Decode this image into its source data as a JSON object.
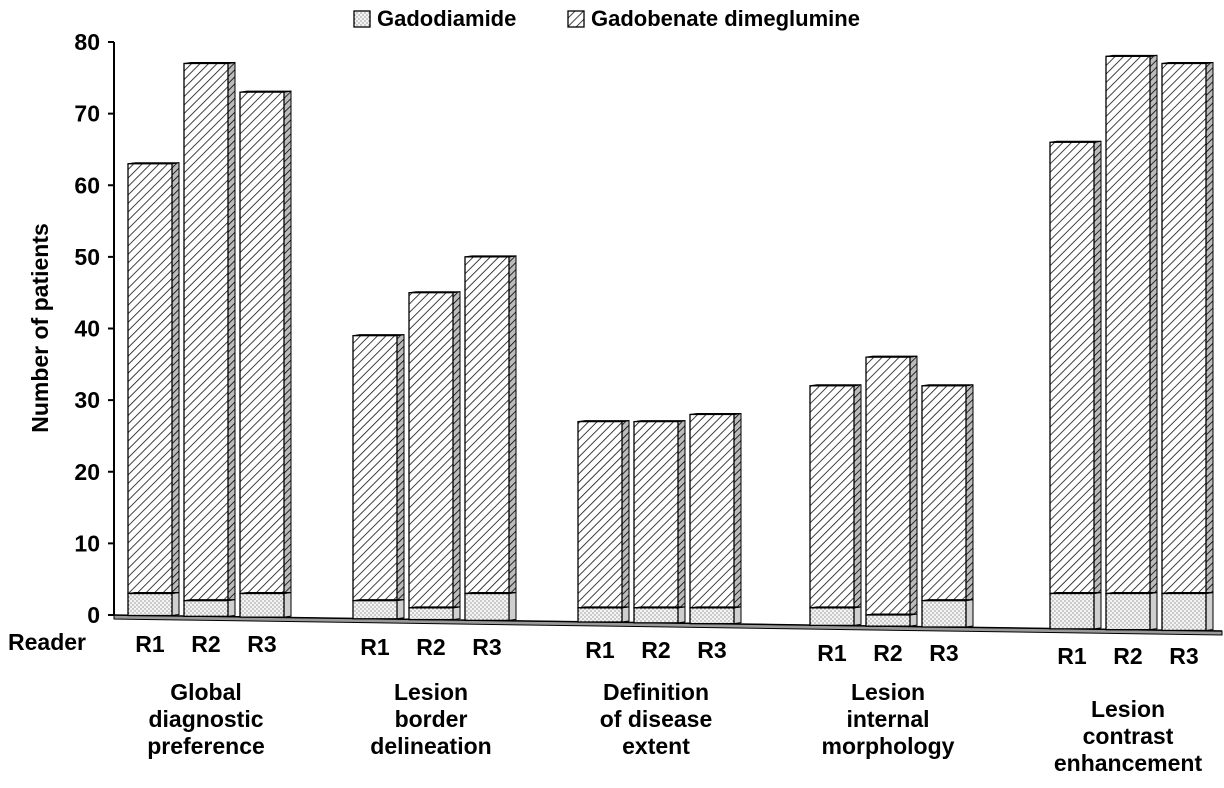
{
  "chart_data": {
    "type": "bar",
    "ylabel": "Number of patients",
    "ylim": [
      0,
      80
    ],
    "yticks": [
      "0",
      "10",
      "20",
      "30",
      "40",
      "50",
      "60",
      "70",
      "80"
    ],
    "reader_label": "Reader",
    "readers": [
      "R1",
      "R2",
      "R3"
    ],
    "groups": [
      {
        "label_lines": [
          "Global",
          "diagnostic",
          "preference"
        ]
      },
      {
        "label_lines": [
          "Lesion",
          "border",
          "delineation"
        ]
      },
      {
        "label_lines": [
          "Definition",
          "of disease",
          "extent"
        ]
      },
      {
        "label_lines": [
          "Lesion",
          "internal",
          "morphology"
        ]
      },
      {
        "label_lines": [
          "Lesion",
          "contrast",
          "enhancement"
        ]
      }
    ],
    "series": [
      {
        "name": "Gadodiamide",
        "pattern": "dotted",
        "values": [
          3,
          2,
          3,
          2,
          1,
          3,
          1,
          1,
          1,
          1,
          0,
          2,
          3,
          3,
          3
        ]
      },
      {
        "name": "Gadobenate dimeglumine",
        "pattern": "hatched",
        "values": [
          63,
          77,
          73,
          39,
          45,
          50,
          27,
          27,
          28,
          32,
          36,
          32,
          66,
          78,
          77
        ]
      }
    ],
    "legend_position": "top",
    "grid": false
  }
}
